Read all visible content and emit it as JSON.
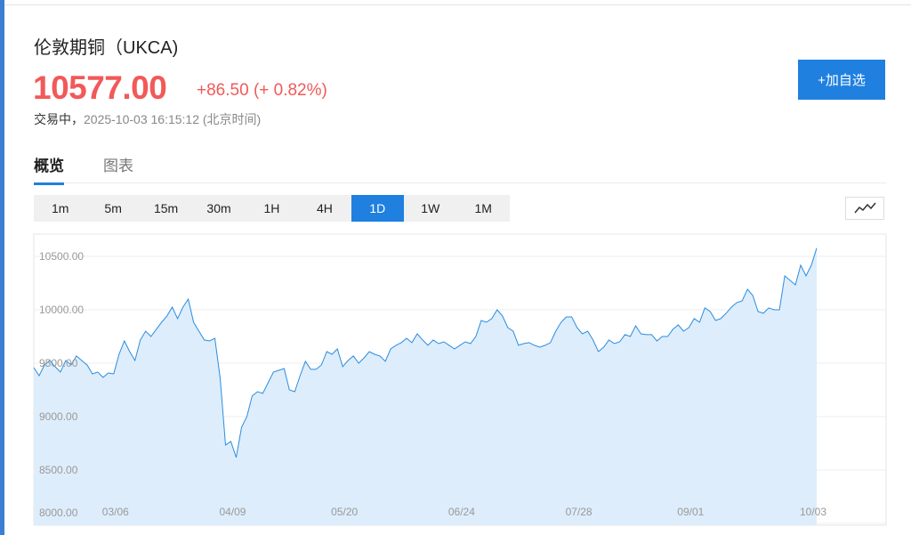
{
  "header": {
    "title": "伦敦期铜（UKCA)",
    "price": "10577.00",
    "change": "+86.50",
    "change_percent": "(+ 0.82%)",
    "status": "交易中，",
    "timestamp": "2025-10-03 16:15:12 (北京时间)",
    "button": "+加自选"
  },
  "tabs": [
    "概览",
    "图表"
  ],
  "active_tab": 0,
  "periods": [
    "1m",
    "5m",
    "15m",
    "30m",
    "1H",
    "4H",
    "1D",
    "1W",
    "1M"
  ],
  "active_period": 6,
  "chart_data": {
    "type": "area",
    "color": "#2a8de0",
    "fill": "#deedfb",
    "grid": true,
    "categories": [
      null,
      null,
      null,
      null,
      null,
      null,
      null,
      null,
      null,
      null,
      null,
      null,
      null,
      null,
      null,
      null,
      "03/06",
      null,
      null,
      null,
      null,
      null,
      null,
      null,
      null,
      null,
      null,
      null,
      null,
      null,
      null,
      null,
      null,
      null,
      null,
      null,
      null,
      null,
      "04/09",
      null,
      null,
      null,
      null,
      null,
      null,
      null,
      null,
      null,
      null,
      null,
      null,
      null,
      null,
      null,
      null,
      null,
      null,
      null,
      null,
      "05/20",
      null,
      null,
      null,
      null,
      null,
      null,
      null,
      null,
      null,
      null,
      null,
      null,
      null,
      null,
      null,
      null,
      null,
      null,
      null,
      null,
      null,
      "06/24",
      null,
      null,
      null,
      null,
      null,
      null,
      null,
      null,
      null,
      null,
      null,
      null,
      null,
      null,
      null,
      null,
      null,
      null,
      null,
      null,
      null,
      "07/28",
      null,
      null,
      null,
      null,
      null,
      null,
      null,
      null,
      null,
      null,
      null,
      null,
      null,
      null,
      null,
      null,
      null,
      null,
      null,
      null,
      "09/01",
      null,
      null,
      null,
      null,
      null,
      null,
      null,
      null,
      null,
      null,
      null,
      null,
      null,
      null,
      null,
      null,
      null,
      null,
      null,
      null,
      null,
      null,
      "10/03"
    ],
    "values": [
      9458,
      9383,
      9483,
      9525,
      9467,
      9417,
      9525,
      9483,
      9567,
      9525,
      9483,
      9400,
      9417,
      9367,
      9408,
      9400,
      9583,
      9708,
      9608,
      9525,
      9717,
      9800,
      9750,
      9817,
      9883,
      9942,
      10025,
      9917,
      10025,
      10100,
      9883,
      9800,
      9717,
      9708,
      9733,
      9358,
      8733,
      8767,
      8617,
      8900,
      9000,
      9192,
      9233,
      9217,
      9317,
      9417,
      9433,
      9450,
      9250,
      9233,
      9383,
      9517,
      9442,
      9442,
      9483,
      9608,
      9583,
      9633,
      9467,
      9525,
      9567,
      9500,
      9550,
      9608,
      9583,
      9567,
      9517,
      9633,
      9667,
      9692,
      9733,
      9692,
      9775,
      9717,
      9667,
      9717,
      9683,
      9700,
      9667,
      9633,
      9667,
      9700,
      9683,
      9750,
      9900,
      9883,
      9917,
      10000,
      9942,
      9833,
      9800,
      9667,
      9683,
      9692,
      9667,
      9650,
      9667,
      9692,
      9800,
      9883,
      9933,
      9933,
      9833,
      9775,
      9800,
      9717,
      9608,
      9650,
      9717,
      9683,
      9700,
      9767,
      9750,
      9850,
      9775,
      9767,
      9767,
      9708,
      9750,
      9750,
      9817,
      9858,
      9800,
      9833,
      9917,
      9883,
      10017,
      9983,
      9900,
      9917,
      9967,
      10025,
      10067,
      10083,
      10192,
      10133,
      9983,
      9967,
      10017,
      10000,
      10000,
      10317,
      10275,
      10233,
      10417,
      10317,
      10417,
      10577
    ],
    "ylim": [
      7983,
      10708
    ],
    "yticks": [
      {
        "value": 8000,
        "label": "8000.00"
      },
      {
        "value": 8500,
        "label": "8500.00"
      },
      {
        "value": 9000,
        "label": "9000.00"
      },
      {
        "value": 9500,
        "label": "9500.00"
      },
      {
        "value": 10000,
        "label": "10000.00"
      },
      {
        "value": 10500,
        "label": "10500.00"
      }
    ]
  }
}
